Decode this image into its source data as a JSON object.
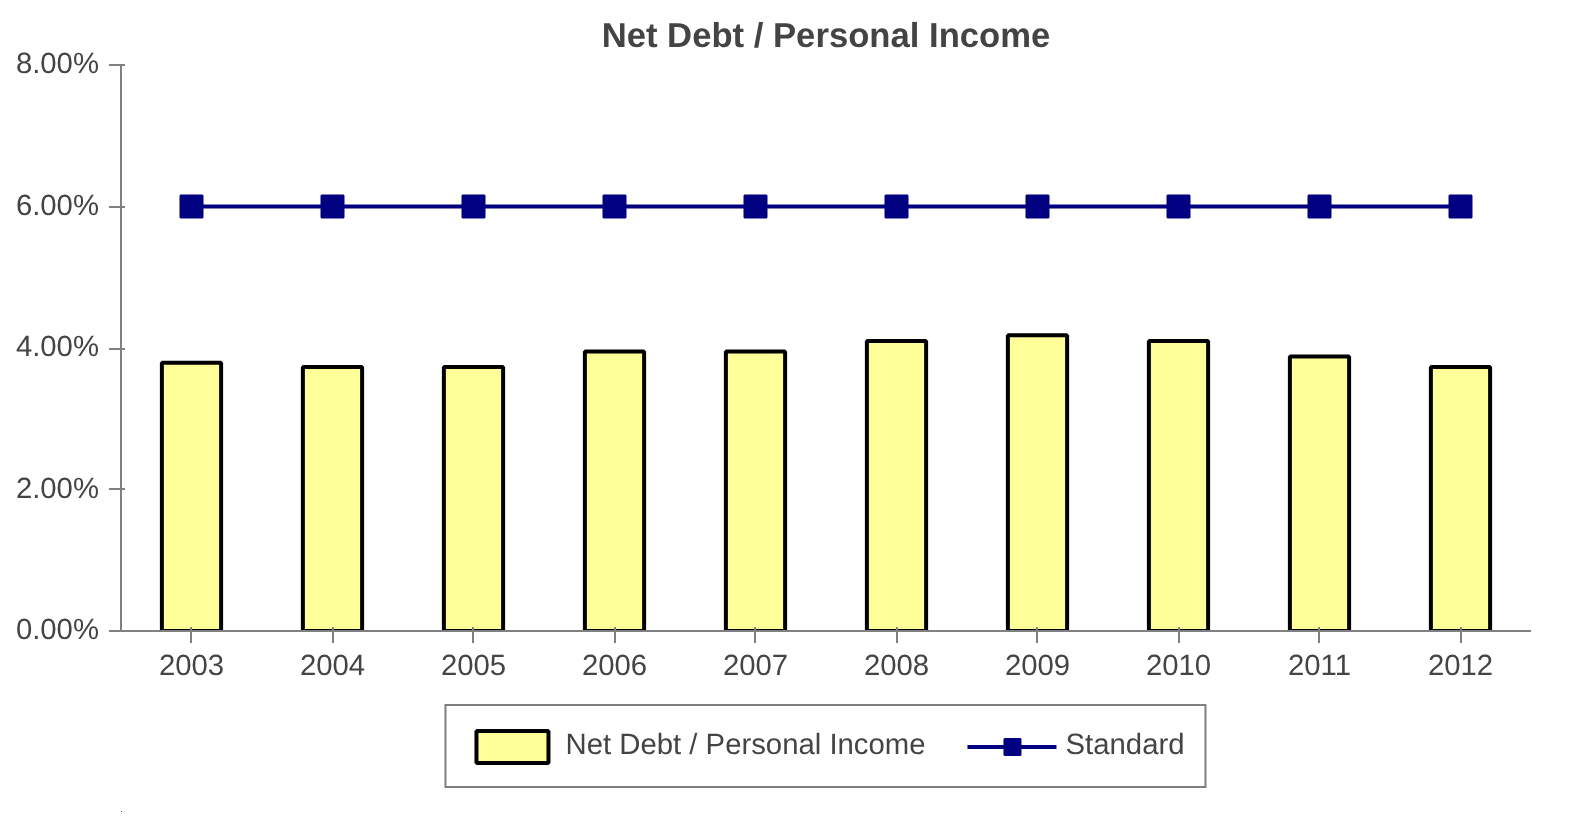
{
  "chart_data": {
    "type": "bar",
    "title": "Net Debt / Personal Income",
    "categories": [
      "2003",
      "2004",
      "2005",
      "2006",
      "2007",
      "2008",
      "2009",
      "2010",
      "2011",
      "2012"
    ],
    "series": [
      {
        "name": "Net Debt / Personal Income",
        "color": "#ffff99",
        "values": [
          3.79,
          3.73,
          3.73,
          3.95,
          3.95,
          4.1,
          4.18,
          4.1,
          3.88,
          3.73
        ]
      },
      {
        "name": "Standard",
        "type": "line",
        "color": "#000080",
        "values": [
          6,
          6,
          6,
          6,
          6,
          6,
          6,
          6,
          6,
          6
        ]
      }
    ],
    "ylim": [
      0,
      8
    ],
    "yticks": [
      {
        "value": 0,
        "label": "0.00%"
      },
      {
        "value": 2,
        "label": "2.00%"
      },
      {
        "value": 4,
        "label": "4.00%"
      },
      {
        "value": 6,
        "label": "6.00%"
      },
      {
        "value": 8,
        "label": "8.00%"
      }
    ],
    "grid": false,
    "legend": "bottom",
    "marker": "square",
    "line_style": "solid"
  }
}
